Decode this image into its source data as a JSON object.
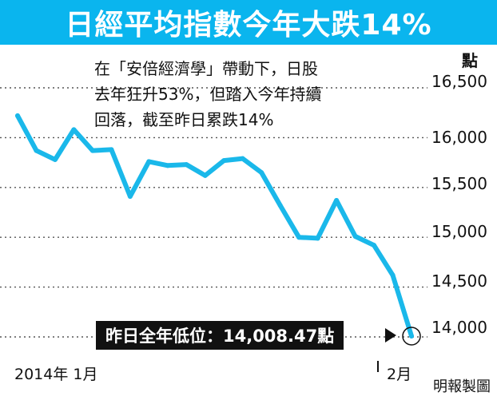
{
  "title": "日經平均指數今年大跌14%",
  "annotation": {
    "lines": [
      "在「安倍經濟學」帶動下，日股",
      "去年狂升53%，但踏入今年持續",
      "回落，截至昨日累跌14%"
    ]
  },
  "low_label": "昨日全年低位：14,008.47點",
  "credit": "明報製圖",
  "colors": {
    "title_bg": "#0ab5ee",
    "line": "#1ab8ea",
    "label_bg": "#111111"
  },
  "chart_data": {
    "type": "line",
    "title": "日經平均指數今年大跌14%",
    "ylabel": "點",
    "xlabel": "",
    "y_ticks": [
      14000,
      14500,
      15000,
      15500,
      16000,
      16500
    ],
    "y_tick_labels": [
      "14,000",
      "14,500",
      "15,000",
      "15,500",
      "16,000",
      "16,500"
    ],
    "x_tick_labels": [
      "2014年 1月",
      "2月"
    ],
    "ylim": [
      13900,
      16600
    ],
    "grid": "dotted horizontal",
    "series": [
      {
        "values": [
          16220,
          15870,
          15780,
          16080,
          15870,
          15880,
          15410,
          15760,
          15720,
          15730,
          15620,
          15770,
          15790,
          15650,
          15320,
          15000,
          14990,
          15370,
          15010,
          14920,
          14620,
          14008.47
        ]
      }
    ],
    "low_point": {
      "value": 14008.47
    }
  }
}
